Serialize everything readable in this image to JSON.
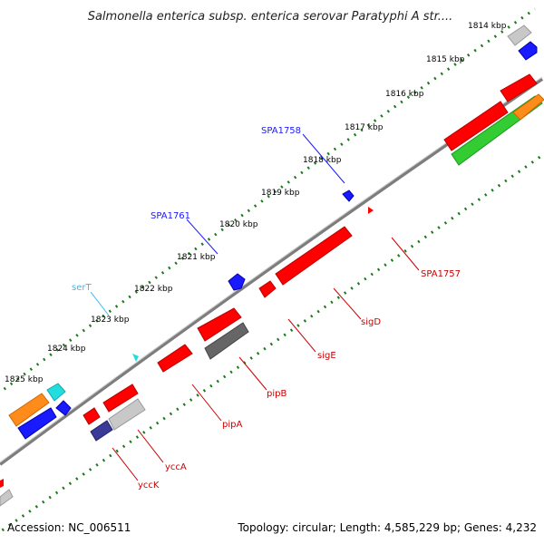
{
  "title": "Salmonella enterica subsp. enterica serovar Paratyphi A str....",
  "footer": {
    "accession": "Accession: NC_006511",
    "topology": "Topology: circular; Length: 4,585,229 bp; Genes: 4,232"
  },
  "kbp_labels": [
    "1814 kbp",
    "1815 kbp",
    "1816 kbp",
    "1817 kbp",
    "1818 kbp",
    "1819 kbp",
    "1820 kbp",
    "1821 kbp",
    "1822 kbp",
    "1823 kbp",
    "1824 kbp",
    "1825 kbp"
  ],
  "gene_labels": [
    "SPA1758",
    "SPA1761",
    "serT",
    "SPA1757",
    "sigD",
    "sigE",
    "pipB",
    "pipA",
    "yccA",
    "yccK"
  ],
  "colors": {
    "backbone": "#888888",
    "tick": "#1a7a1a",
    "red": "#ff0000",
    "blue": "#1a1aff",
    "cyan": "#22dddd",
    "orange": "#ff8c1a",
    "green": "#33cc33",
    "gray": "#666666",
    "lightgray": "#c8c8c8",
    "navy": "#3a3a99",
    "label_blue": "#1a1aff",
    "label_red": "#cc0000",
    "label_cyan": "#33bbee"
  }
}
